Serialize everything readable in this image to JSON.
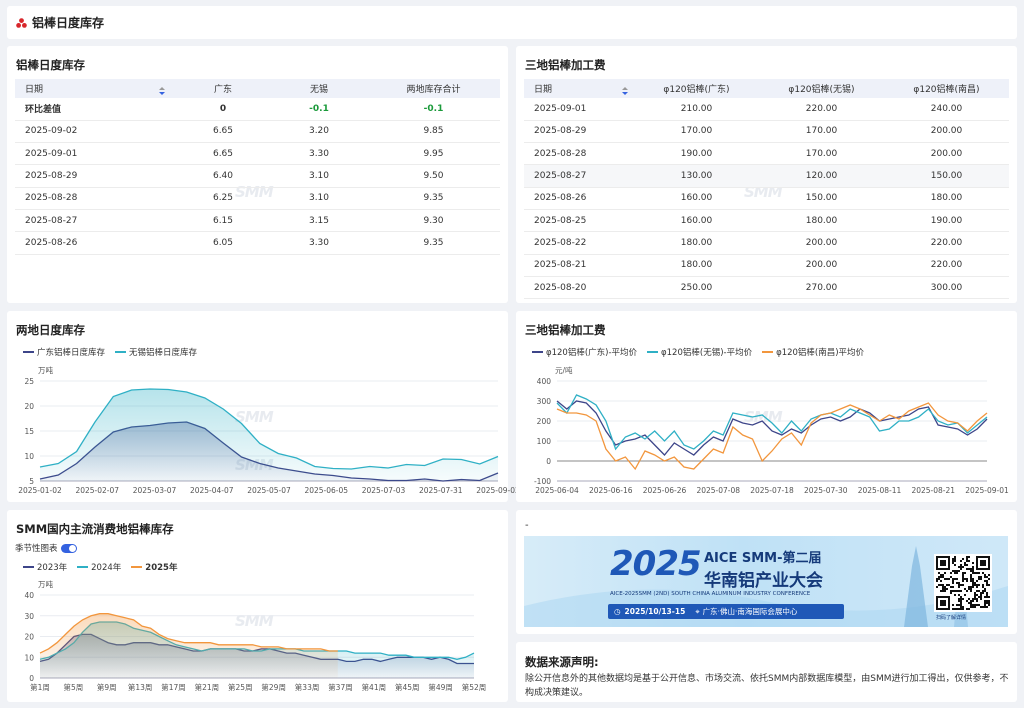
{
  "header": {
    "title": "铝棒日度库存"
  },
  "tables": {
    "inventory": {
      "title": "铝棒日度库存",
      "columns": [
        "日期",
        "广东",
        "无锡",
        "两地库存合计"
      ],
      "diff": {
        "label": "环比差值",
        "gd": "0",
        "wx": "-0.1",
        "total": "-0.1"
      },
      "rows": [
        [
          "2025-09-02",
          "6.65",
          "3.20",
          "9.85"
        ],
        [
          "2025-09-01",
          "6.65",
          "3.30",
          "9.95"
        ],
        [
          "2025-08-29",
          "6.40",
          "3.10",
          "9.50"
        ],
        [
          "2025-08-28",
          "6.25",
          "3.10",
          "9.35"
        ],
        [
          "2025-08-27",
          "6.15",
          "3.15",
          "9.30"
        ],
        [
          "2025-08-26",
          "6.05",
          "3.30",
          "9.35"
        ]
      ]
    },
    "fees": {
      "title": "三地铝棒加工费",
      "columns": [
        "日期",
        "φ120铝棒(广东)",
        "φ120铝棒(无锡)",
        "φ120铝棒(南昌)"
      ],
      "rows": [
        [
          "2025-09-01",
          "210.00",
          "220.00",
          "240.00"
        ],
        [
          "2025-08-29",
          "170.00",
          "170.00",
          "200.00"
        ],
        [
          "2025-08-28",
          "190.00",
          "170.00",
          "200.00"
        ],
        [
          "2025-08-27",
          "130.00",
          "120.00",
          "150.00"
        ],
        [
          "2025-08-26",
          "160.00",
          "150.00",
          "180.00"
        ],
        [
          "2025-08-25",
          "160.00",
          "180.00",
          "190.00"
        ],
        [
          "2025-08-22",
          "180.00",
          "200.00",
          "220.00"
        ],
        [
          "2025-08-21",
          "180.00",
          "200.00",
          "220.00"
        ],
        [
          "2025-08-20",
          "250.00",
          "270.00",
          "300.00"
        ]
      ]
    }
  },
  "watermark": "SMM",
  "chart_data": [
    {
      "type": "area",
      "title": "两地日度库存",
      "ylabel": "万吨",
      "ylim": [
        5,
        25
      ],
      "yticks": [
        5,
        10,
        15,
        20,
        25
      ],
      "xticks": [
        "2025-01-02",
        "2025-02-07",
        "2025-03-07",
        "2025-04-07",
        "2025-05-07",
        "2025-06-05",
        "2025-07-03",
        "2025-07-31",
        "2025-09-02"
      ],
      "series": [
        {
          "name": "广东铝棒日度库存",
          "color": "#3d4589",
          "values": [
            5.4,
            6.2,
            8.5,
            11.8,
            14.8,
            15.8,
            16.1,
            16.6,
            16.8,
            15.5,
            12.6,
            9.8,
            8.5,
            7.6,
            7.0,
            6.4,
            6.1,
            5.6,
            5.4,
            5.1,
            5.1,
            5.4,
            5.0,
            5.3,
            5.1,
            6.6
          ]
        },
        {
          "name": "无锡铝棒日度库存",
          "color": "#2fb0c5",
          "values": [
            7.8,
            8.5,
            10.9,
            16.8,
            21.9,
            23.2,
            23.4,
            23.3,
            22.8,
            21.6,
            19.4,
            16.5,
            12.5,
            10.5,
            9.6,
            7.9,
            7.5,
            7.4,
            7.9,
            7.6,
            8.3,
            8.1,
            9.4,
            9.3,
            8.4,
            9.9
          ]
        }
      ]
    },
    {
      "type": "line",
      "title": "三地铝棒加工费",
      "ylabel": "元/吨",
      "ylim": [
        -100,
        400
      ],
      "yticks": [
        -100,
        0,
        100,
        200,
        300,
        400
      ],
      "xticks": [
        "2025-06-04",
        "2025-06-16",
        "2025-06-26",
        "2025-07-08",
        "2025-07-18",
        "2025-07-30",
        "2025-08-11",
        "2025-08-21",
        "2025-09-01"
      ],
      "series": [
        {
          "name": "φ120铝棒(广东)-平均价",
          "color": "#3d4589",
          "values": [
            300,
            260,
            300,
            290,
            240,
            150,
            80,
            100,
            110,
            130,
            80,
            30,
            90,
            60,
            30,
            80,
            120,
            100,
            210,
            190,
            180,
            200,
            150,
            130,
            160,
            140,
            180,
            210,
            220,
            200,
            220,
            260,
            240,
            200,
            210,
            220,
            230,
            260,
            270,
            180,
            170,
            160,
            130,
            160,
            210
          ]
        },
        {
          "name": "φ120铝棒(无锡)-平均价",
          "color": "#2fb0c5",
          "values": [
            290,
            240,
            330,
            310,
            280,
            200,
            60,
            120,
            140,
            110,
            150,
            100,
            150,
            80,
            60,
            100,
            150,
            130,
            240,
            230,
            220,
            230,
            190,
            140,
            200,
            150,
            210,
            230,
            240,
            220,
            260,
            240,
            220,
            150,
            160,
            200,
            200,
            220,
            260,
            200,
            180,
            190,
            140,
            180,
            220
          ]
        },
        {
          "name": "φ120铝棒(南昌)平均价",
          "color": "#f2963d",
          "values": [
            260,
            240,
            240,
            230,
            200,
            60,
            0,
            20,
            -40,
            50,
            30,
            0,
            20,
            -30,
            -40,
            10,
            60,
            40,
            170,
            130,
            110,
            0,
            50,
            110,
            140,
            80,
            190,
            230,
            240,
            260,
            280,
            260,
            230,
            200,
            230,
            210,
            250,
            270,
            290,
            230,
            200,
            190,
            150,
            200,
            240
          ]
        }
      ]
    },
    {
      "type": "area",
      "title": "SMM国内主流消费地铝棒库存",
      "toggle_label": "季节性图表",
      "ylabel": "万吨",
      "ylim": [
        0,
        40
      ],
      "yticks": [
        0,
        10,
        20,
        30,
        40
      ],
      "xticks": [
        "第1周",
        "第5周",
        "第9周",
        "第13周",
        "第17周",
        "第21周",
        "第25周",
        "第29周",
        "第33周",
        "第37周",
        "第41周",
        "第45周",
        "第49周",
        "第52周"
      ],
      "series": [
        {
          "name": "2023年",
          "color": "#3d4589",
          "values": [
            8,
            9,
            12,
            16,
            20,
            21,
            21,
            19,
            17,
            16,
            16,
            17,
            17,
            17,
            16,
            16,
            15,
            14,
            13,
            13,
            14,
            14,
            14,
            14,
            13,
            13,
            14,
            14,
            13,
            12,
            12,
            11,
            10,
            9,
            9,
            9,
            8,
            8,
            9,
            9,
            8,
            9,
            10,
            10,
            10,
            10,
            9,
            10,
            9,
            7,
            7,
            7
          ]
        },
        {
          "name": "2024年",
          "color": "#2fb0c5",
          "values": [
            9,
            10,
            12,
            14,
            17,
            22,
            26,
            27,
            27,
            27,
            26,
            24,
            23,
            22,
            20,
            18,
            16,
            15,
            14,
            13,
            14,
            14,
            14,
            14,
            14,
            13,
            13,
            14,
            14,
            14,
            14,
            13,
            13,
            13,
            13,
            13,
            13,
            12,
            12,
            12,
            12,
            11,
            11,
            11,
            10,
            10,
            10,
            10,
            10,
            9,
            10,
            12
          ]
        },
        {
          "name": "2025年",
          "color": "#f2963d",
          "bold": true,
          "values": [
            12,
            14,
            17,
            21,
            25,
            28,
            30,
            31,
            31,
            30,
            29,
            28,
            25,
            24,
            21,
            19,
            18,
            17,
            17,
            17,
            17,
            16,
            16,
            16,
            16,
            16,
            15,
            15,
            15,
            14,
            14,
            14,
            14,
            14,
            13,
            13
          ]
        }
      ]
    }
  ],
  "banner": {
    "year": "2025",
    "title1": "AICE SMM-第二届",
    "title2": "华南铝产业大会",
    "subtitle": "AICE-2025SMM (2ND) SOUTH CHINA ALUMINUM INDUSTRY CONFERENCE",
    "date": "2025/10/13-15",
    "location": "广东·佛山·南海国际会展中心",
    "qr_caption": "扫码了解详情",
    "dash": "-"
  },
  "declaration": {
    "title": "数据来源声明:",
    "text": "除公开信息外的其他数据均是基于公开信息、市场交流、依托SMM内部数据库模型，由SMM进行加工得出，仅供参考，不构成决策建议。"
  }
}
